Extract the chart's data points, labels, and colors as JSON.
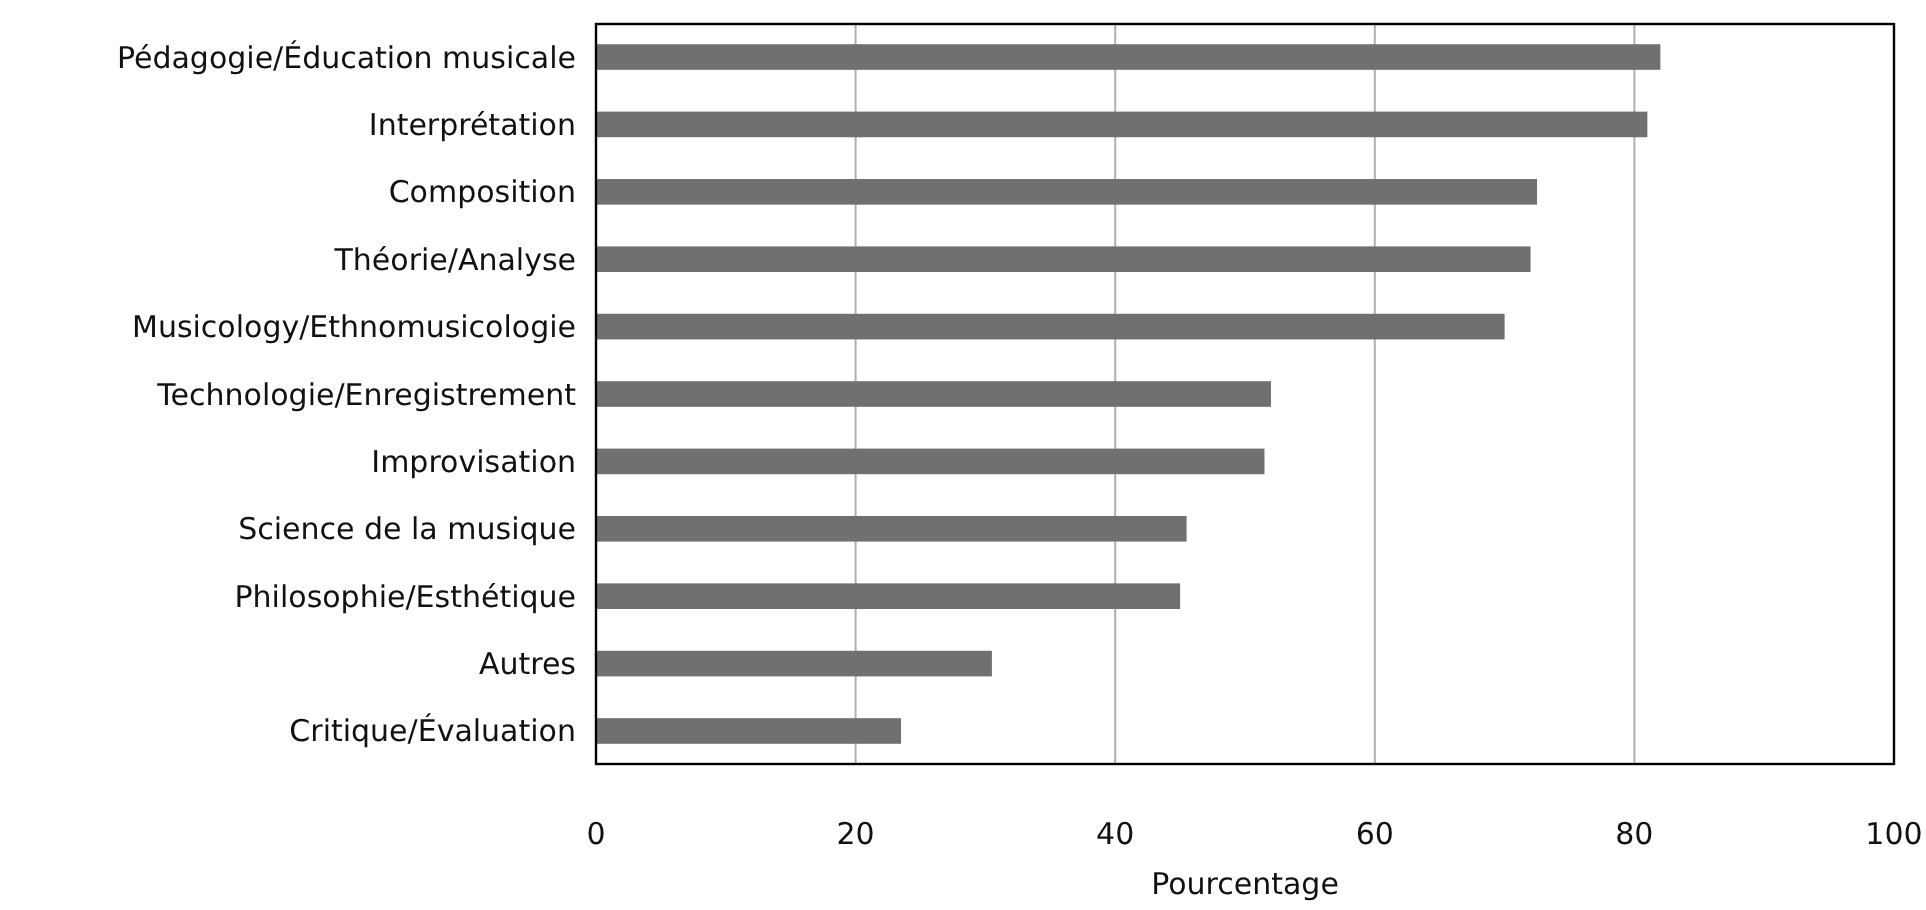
{
  "chart_data": {
    "type": "bar",
    "orientation": "horizontal",
    "xlabel": "Pourcentage",
    "categories": [
      "Pédagogie/Éducation musicale",
      "Interprétation",
      "Composition",
      "Théorie/Analyse",
      "Musicology/Ethnomusicologie",
      "Technologie/Enregistrement",
      "Improvisation",
      "Science de la musique",
      "Philosophie/Esthétique",
      "Autres",
      "Critique/Évaluation"
    ],
    "values": [
      82,
      81,
      72.5,
      72,
      70,
      52,
      51.5,
      45.5,
      45,
      30.5,
      23.5
    ],
    "color": "#707070",
    "xlim": [
      0,
      100
    ],
    "xticks": [
      0,
      20,
      40,
      60,
      80,
      100
    ],
    "grid": "x"
  }
}
